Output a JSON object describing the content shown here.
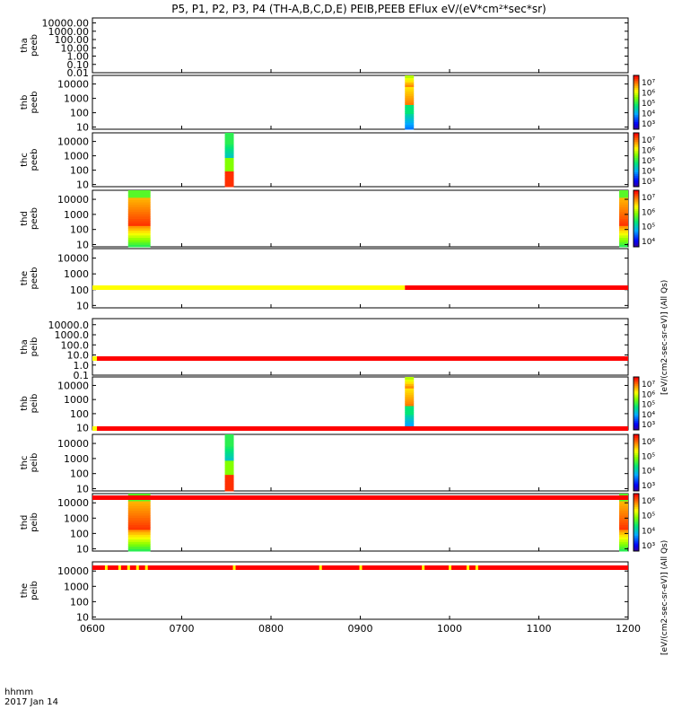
{
  "title": "P5, P1, P2, P3, P4 (TH-A,B,C,D,E) PEIB,PEEB EFlux eV/(eV*cm²*sec*sr)",
  "chart_data": {
    "type": "heatmap",
    "x_ticks": [
      "0600",
      "0700",
      "0800",
      "0900",
      "1000",
      "1100",
      "1200"
    ],
    "x_range_hhmm": [
      "0600",
      "1200"
    ],
    "x_footer": [
      "hhmm",
      "2017 Jan 14"
    ],
    "colorbar_units": {
      "peeb": "[eV/(cm2-sec-sr-eV)] (All Qs)",
      "peib": "[eV/(cm2-sec-sr-eV)] (All Qs)"
    },
    "panels": [
      {
        "id": "tha_peeb",
        "label": [
          "tha",
          "peeb"
        ],
        "y_ticks": [
          "10000.00",
          "1000.00",
          "100.00",
          "10.00",
          "1.00",
          "0.10",
          "0.01"
        ],
        "y_log_range": [
          -2,
          4.6
        ],
        "bursts": [],
        "colorbar": null
      },
      {
        "id": "thb_peeb",
        "label": [
          "thb",
          "peeb"
        ],
        "y_ticks": [
          "10000",
          "1000",
          "100",
          "10"
        ],
        "y_log_range": [
          0.85,
          4.6
        ],
        "bursts": [
          {
            "start": "0930",
            "end": "0936",
            "profile": "b"
          }
        ],
        "colorbar": {
          "ticks": [
            "10⁷",
            "10⁶",
            "10⁵",
            "10⁴",
            "10³"
          ]
        }
      },
      {
        "id": "thc_peeb",
        "label": [
          "thc",
          "peeb"
        ],
        "y_ticks": [
          "10000",
          "1000",
          "100",
          "10"
        ],
        "y_log_range": [
          0.85,
          4.6
        ],
        "bursts": [
          {
            "start": "0729",
            "end": "0735",
            "profile": "c"
          }
        ],
        "colorbar": {
          "ticks": [
            "10⁷",
            "10⁶",
            "10⁵",
            "10⁴",
            "10³"
          ]
        }
      },
      {
        "id": "thd_peeb",
        "label": [
          "thd",
          "peeb"
        ],
        "y_ticks": [
          "10000",
          "1000",
          "100",
          "10"
        ],
        "y_log_range": [
          0.85,
          4.6
        ],
        "bursts": [
          {
            "start": "0624",
            "end": "0639",
            "profile": "d"
          },
          {
            "start": "1154",
            "end": "1200",
            "profile": "d"
          }
        ],
        "colorbar": {
          "ticks": [
            "10⁷",
            "10⁶",
            "10⁵",
            "10⁴"
          ]
        }
      },
      {
        "id": "the_peeb",
        "label": [
          "the",
          "peeb"
        ],
        "y_ticks": [
          "10000",
          "1000",
          "100",
          "10"
        ],
        "y_log_range": [
          0.85,
          4.6
        ],
        "bursts": [],
        "colorbar": null
      },
      {
        "id": "tha_peib",
        "label": [
          "tha",
          "peib"
        ],
        "y_ticks": [
          "10000.0",
          "1000.0",
          "100.0",
          "10.0",
          "1.0",
          "0.1"
        ],
        "y_log_range": [
          -1,
          4.6
        ],
        "bursts": [],
        "colorbar": null
      },
      {
        "id": "thb_peib",
        "label": [
          "thb",
          "peib"
        ],
        "y_ticks": [
          "10000",
          "1000",
          "100",
          "10"
        ],
        "y_log_range": [
          0.85,
          4.6
        ],
        "bursts": [
          {
            "start": "0930",
            "end": "0936",
            "profile": "b"
          }
        ],
        "colorbar": {
          "ticks": [
            "10⁷",
            "10⁶",
            "10⁵",
            "10⁴",
            "10³"
          ]
        }
      },
      {
        "id": "thc_peib",
        "label": [
          "thc",
          "peib"
        ],
        "y_ticks": [
          "10000",
          "1000",
          "100",
          "10"
        ],
        "y_log_range": [
          0.85,
          4.6
        ],
        "bursts": [
          {
            "start": "0729",
            "end": "0735",
            "profile": "c"
          }
        ],
        "colorbar": {
          "ticks": [
            "10⁶",
            "10⁵",
            "10⁴",
            "10³"
          ]
        }
      },
      {
        "id": "thd_peib",
        "label": [
          "thd",
          "peib"
        ],
        "y_ticks": [
          "10000",
          "1000",
          "100",
          "10"
        ],
        "y_log_range": [
          0.85,
          4.6
        ],
        "bursts": [
          {
            "start": "0624",
            "end": "0639",
            "profile": "d"
          },
          {
            "start": "1154",
            "end": "1200",
            "profile": "d"
          }
        ],
        "colorbar": {
          "ticks": [
            "10⁶",
            "10⁵",
            "10⁴",
            "10³"
          ]
        }
      },
      {
        "id": "the_peib",
        "label": [
          "the",
          "peib"
        ],
        "y_ticks": [
          "10000",
          "1000",
          "100",
          "10"
        ],
        "y_log_range": [
          0.85,
          4.6
        ],
        "bursts": [],
        "colorbar": null
      }
    ],
    "status_bars": [
      {
        "after": "the_peeb",
        "segments": [
          {
            "start": "0600",
            "end": "0930",
            "color": "#ffff00"
          },
          {
            "start": "0930",
            "end": "1200",
            "color": "#ff0000"
          }
        ],
        "ticks": []
      },
      {
        "after": "tha_peib",
        "segments": [
          {
            "start": "0600",
            "end": "0603",
            "color": "#ffff00"
          },
          {
            "start": "0603",
            "end": "1200",
            "color": "#ff0000"
          }
        ],
        "ticks": []
      },
      {
        "after": "thb_peib",
        "segments": [
          {
            "start": "0600",
            "end": "0603",
            "color": "#ffff00"
          },
          {
            "start": "0603",
            "end": "1200",
            "color": "#ff0000"
          }
        ],
        "ticks": []
      },
      {
        "after": "thc_peib",
        "segments": [
          {
            "start": "0600",
            "end": "1200",
            "color": "#ff0000"
          }
        ],
        "ticks": []
      },
      {
        "after": "thd_peib",
        "segments": [
          {
            "start": "0600",
            "end": "1200",
            "color": "#ff0000"
          }
        ],
        "ticks": [
          "0609",
          "0618",
          "0624",
          "0630",
          "0636",
          "0735",
          "0833",
          "0900",
          "0942",
          "1000",
          "1012",
          "1018"
        ]
      }
    ]
  }
}
